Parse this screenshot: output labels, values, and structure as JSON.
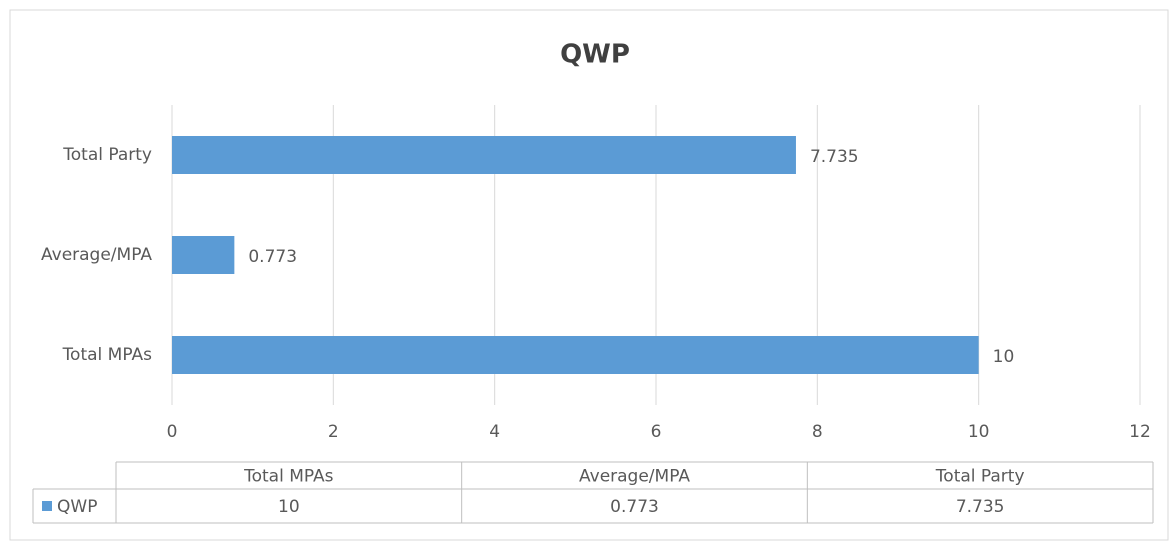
{
  "chart_data": {
    "type": "bar",
    "orientation": "horizontal",
    "title": "QWP",
    "categories": [
      "Total MPAs",
      "Average/MPA",
      "Total Party"
    ],
    "series": [
      {
        "name": "QWP",
        "color": "#5b9bd5",
        "values": [
          10,
          0.773,
          7.735
        ]
      }
    ],
    "xlim": [
      0,
      12
    ],
    "xticks": [
      0,
      2,
      4,
      6,
      8,
      10,
      12
    ],
    "grid": true,
    "data_table": true
  }
}
